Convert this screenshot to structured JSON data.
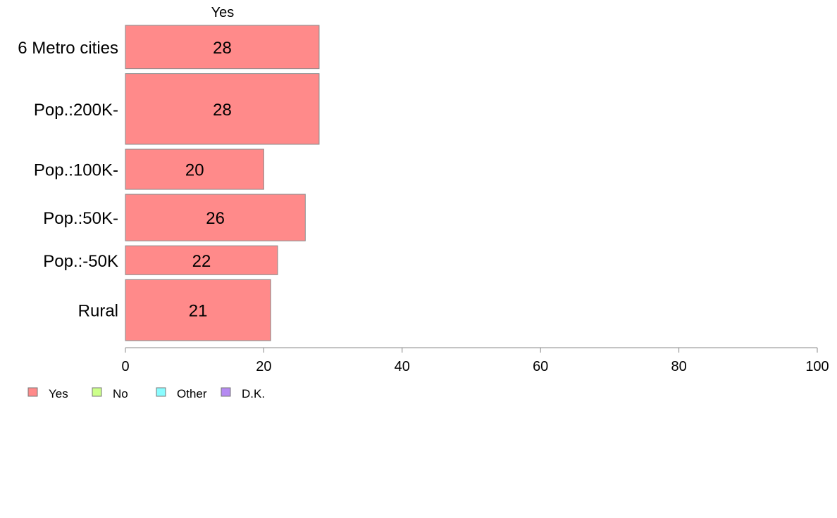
{
  "chart_data": {
    "type": "bar",
    "orientation": "horizontal",
    "column_title": "Yes",
    "categories": [
      "6 Metro cities",
      "Pop.:200K-",
      "Pop.:100K-",
      "Pop.:50K-",
      "Pop.:-50K",
      "Rural"
    ],
    "series": [
      {
        "name": "Yes",
        "values": [
          28,
          28,
          20,
          26,
          22,
          21
        ],
        "color": "#ff8a8a"
      }
    ],
    "category_weights": [
      0.135,
      0.22,
      0.125,
      0.145,
      0.09,
      0.19
    ],
    "xlim": [
      0,
      100
    ],
    "xticks": [
      0,
      20,
      40,
      60,
      80,
      100
    ],
    "legend": {
      "placement": "bottom-left",
      "items": [
        {
          "label": "Yes",
          "color": "#ff8a8a"
        },
        {
          "label": "No",
          "color": "#ccff8a"
        },
        {
          "label": "Other",
          "color": "#8afcff"
        },
        {
          "label": "D.K.",
          "color": "#b58af2"
        }
      ]
    },
    "grid": false
  }
}
